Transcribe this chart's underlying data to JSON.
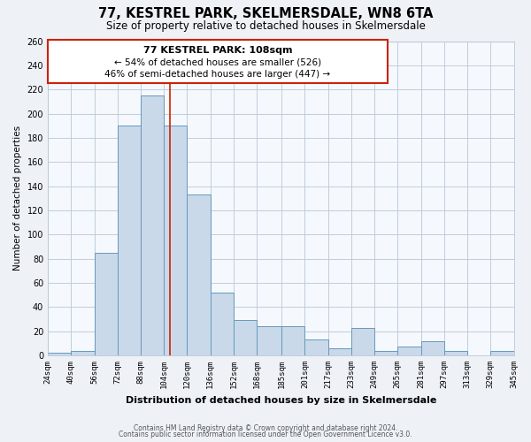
{
  "title": "77, KESTREL PARK, SKELMERSDALE, WN8 6TA",
  "subtitle": "Size of property relative to detached houses in Skelmersdale",
  "xlabel": "Distribution of detached houses by size in Skelmersdale",
  "ylabel": "Number of detached properties",
  "bar_color": "#c9d9ea",
  "bar_edge_color": "#6699bb",
  "background_color": "#eef2f7",
  "plot_bg_color": "#f5f8fc",
  "grid_color": "#b8c8d8",
  "annotation_box_color": "#ffffff",
  "annotation_border_color": "#cc2200",
  "vline_color": "#cc2200",
  "vline_x": 108,
  "bins": [
    24,
    40,
    56,
    72,
    88,
    104,
    120,
    136,
    152,
    168,
    185,
    201,
    217,
    233,
    249,
    265,
    281,
    297,
    313,
    329,
    345
  ],
  "bin_labels": [
    "24sqm",
    "40sqm",
    "56sqm",
    "72sqm",
    "88sqm",
    "104sqm",
    "120sqm",
    "136sqm",
    "152sqm",
    "168sqm",
    "185sqm",
    "201sqm",
    "217sqm",
    "233sqm",
    "249sqm",
    "265sqm",
    "281sqm",
    "297sqm",
    "313sqm",
    "329sqm",
    "345sqm"
  ],
  "counts": [
    2,
    4,
    85,
    190,
    215,
    190,
    133,
    52,
    29,
    24,
    24,
    13,
    6,
    23,
    4,
    7,
    12,
    4,
    0,
    4
  ],
  "annotation_title": "77 KESTREL PARK: 108sqm",
  "annotation_line1": "← 54% of detached houses are smaller (526)",
  "annotation_line2": "46% of semi-detached houses are larger (447) →",
  "footer1": "Contains HM Land Registry data © Crown copyright and database right 2024.",
  "footer2": "Contains public sector information licensed under the Open Government Licence v3.0.",
  "ylim": [
    0,
    260
  ],
  "yticks": [
    0,
    20,
    40,
    60,
    80,
    100,
    120,
    140,
    160,
    180,
    200,
    220,
    240,
    260
  ]
}
